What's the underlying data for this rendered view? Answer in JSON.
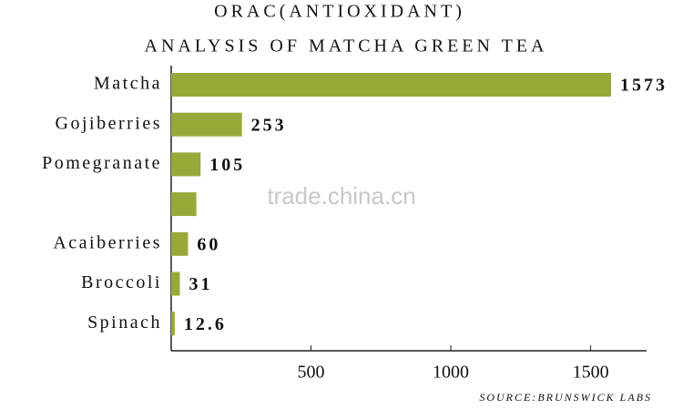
{
  "chart_data": {
    "type": "bar",
    "orientation": "horizontal",
    "title": [
      "ORAC(ANTIOXIDANT)",
      "ANALYSIS OF MATCHA GREEN TEA"
    ],
    "categories": [
      "Matcha",
      "Gojiberries",
      "Pomegranate",
      null,
      "Acaiberries",
      "Broccoli",
      "Spinach"
    ],
    "values": [
      1573,
      253,
      105,
      90,
      60,
      31,
      12.6
    ],
    "show_value_labels": [
      true,
      true,
      true,
      false,
      true,
      true,
      true
    ],
    "color": "#9aa83a",
    "xlim": [
      0,
      1700
    ],
    "xticks": [
      500,
      1000,
      1500
    ],
    "source": "SOURCE:BRUNSWICK LABS",
    "watermark": "trade.china.cn"
  }
}
